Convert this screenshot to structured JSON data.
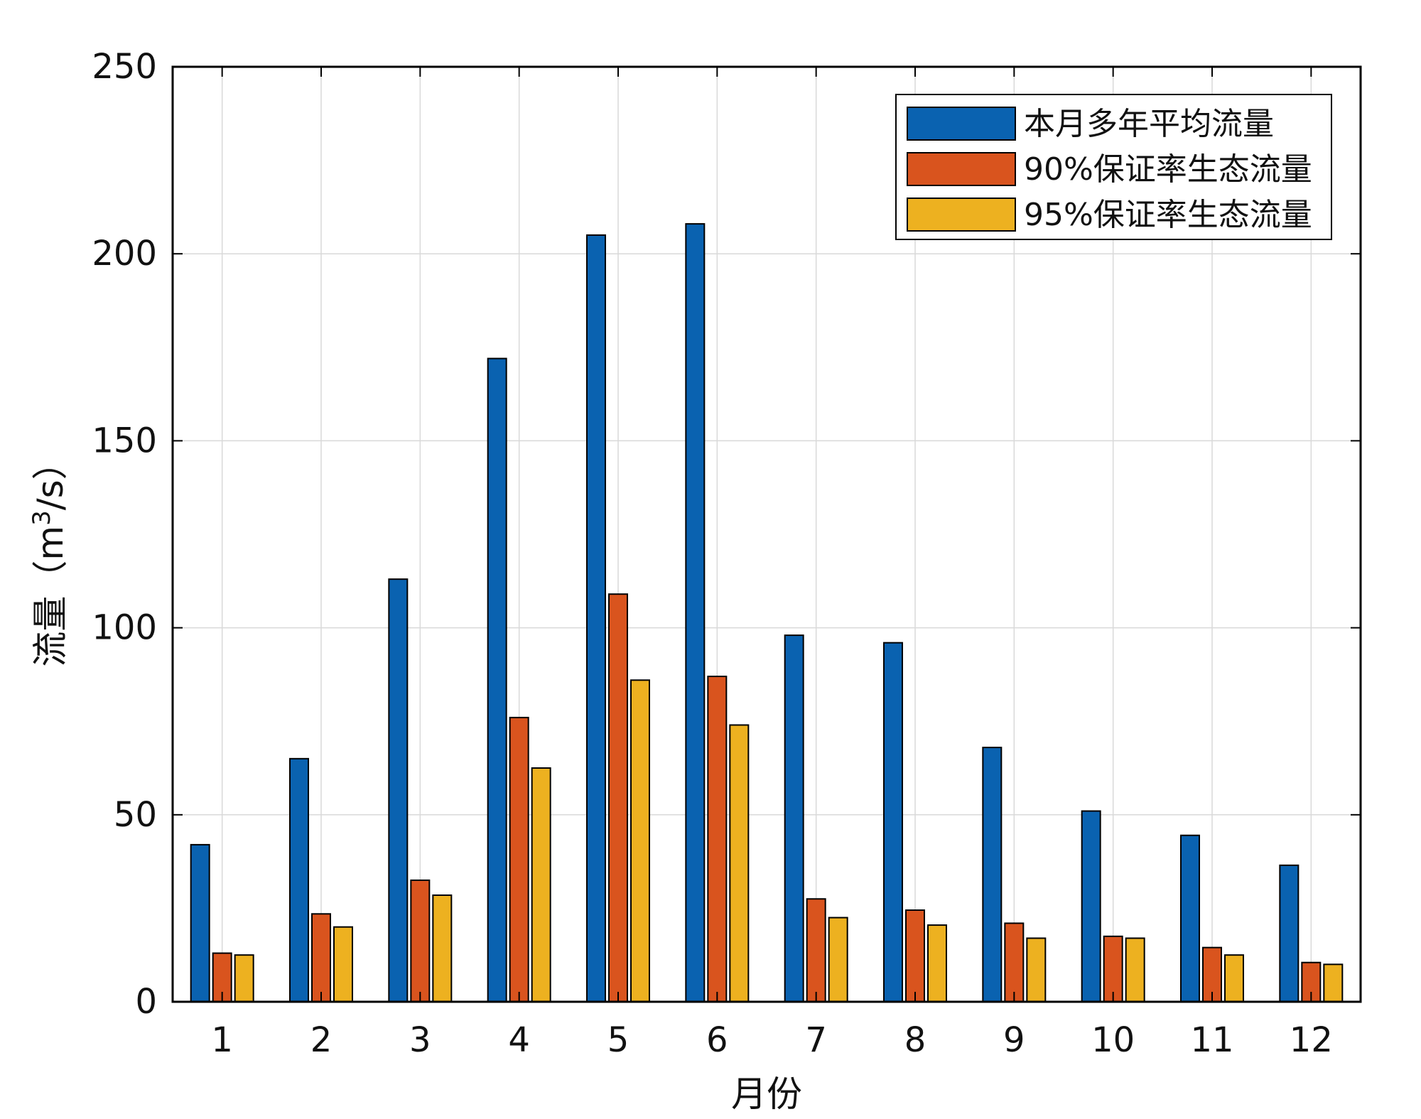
{
  "chart_data": {
    "type": "bar",
    "xlabel": "月份",
    "ylabel": "流量（m³/s）",
    "ylabel_parts": {
      "prefix": "流量（m",
      "superscript": "3",
      "suffix": "/s）"
    },
    "ylim": [
      0,
      250
    ],
    "yticks": [
      "0",
      "50",
      "100",
      "150",
      "200",
      "250"
    ],
    "categories": [
      "1",
      "2",
      "3",
      "4",
      "5",
      "6",
      "7",
      "8",
      "9",
      "10",
      "11",
      "12"
    ],
    "grid": true,
    "legend_position": "top-right",
    "series": [
      {
        "name": "本月多年平均流量",
        "color": "#0a62b0",
        "values": [
          42,
          65,
          113,
          172,
          205,
          208,
          98,
          96,
          68,
          51,
          44.5,
          36.5
        ]
      },
      {
        "name": "90%保证率生态流量",
        "color": "#d9541e",
        "values": [
          13,
          23.5,
          32.5,
          76,
          109,
          87,
          27.5,
          24.5,
          21,
          17.5,
          14.5,
          10.5
        ]
      },
      {
        "name": "95%保证率生态流量",
        "color": "#edb120",
        "values": [
          12.5,
          20,
          28.5,
          62.5,
          86,
          74,
          22.5,
          20.5,
          17,
          17,
          12.5,
          10
        ]
      }
    ]
  }
}
